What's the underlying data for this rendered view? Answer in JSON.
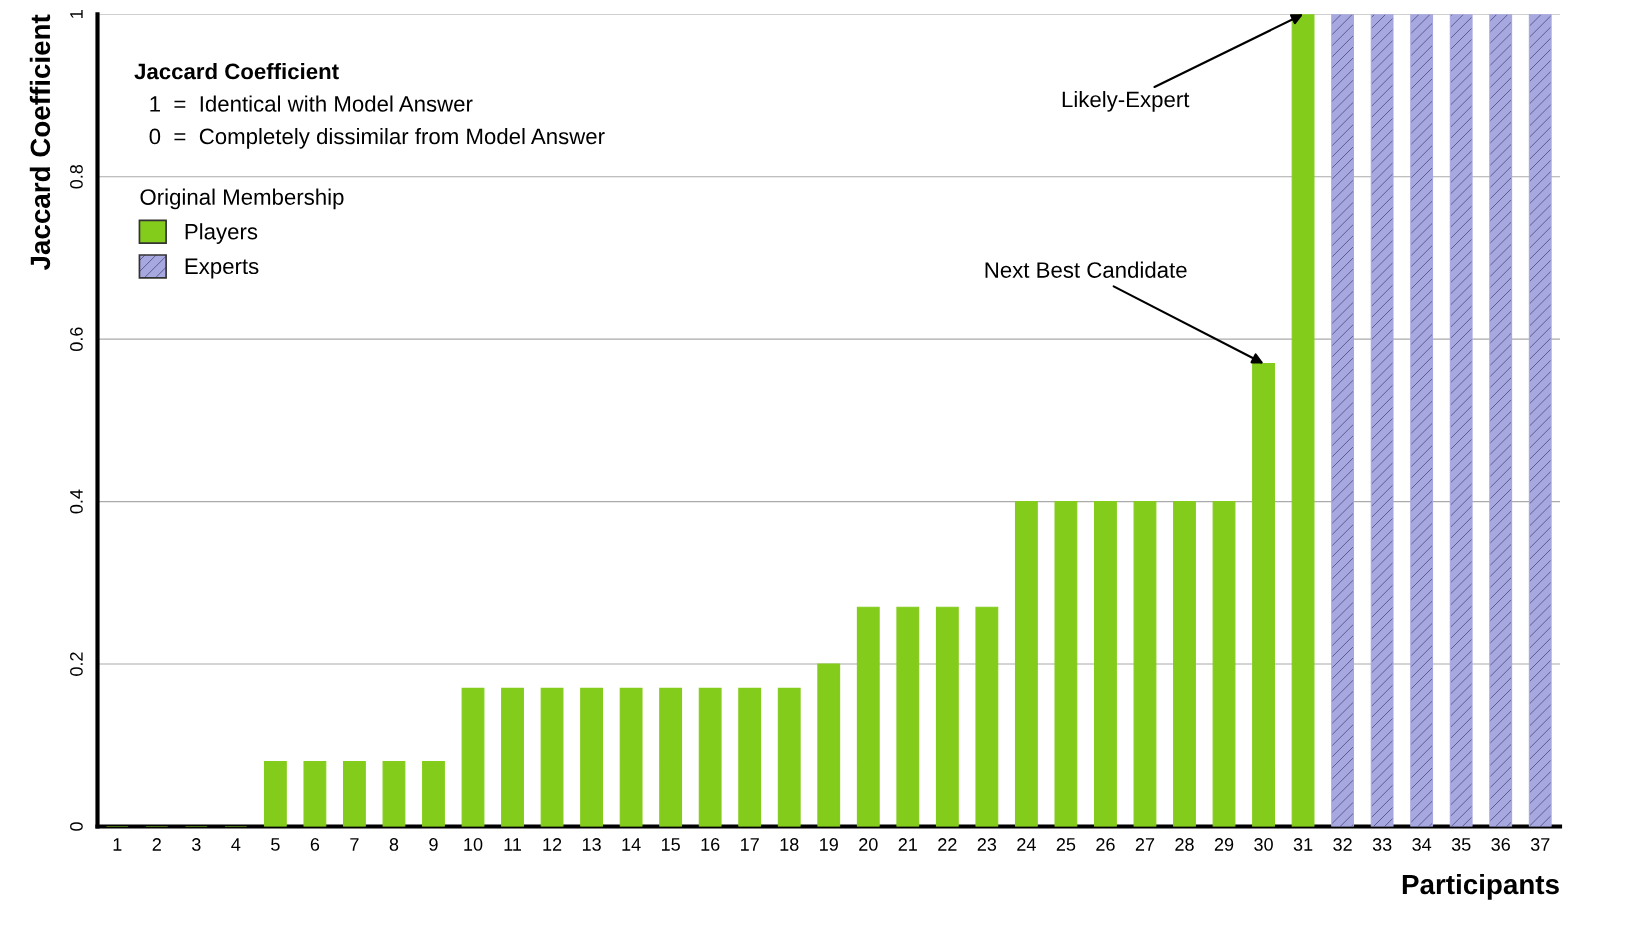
{
  "chart_data": {
    "type": "bar",
    "xlabel": "Participants",
    "ylabel": "Jaccard Coefficient",
    "legend_title": "Original Membership",
    "categories": [
      "1",
      "2",
      "3",
      "4",
      "5",
      "6",
      "7",
      "8",
      "9",
      "10",
      "11",
      "12",
      "13",
      "14",
      "15",
      "16",
      "17",
      "18",
      "19",
      "20",
      "21",
      "22",
      "23",
      "24",
      "25",
      "26",
      "27",
      "28",
      "29",
      "30",
      "31",
      "32",
      "33",
      "34",
      "35",
      "36",
      "37"
    ],
    "series": [
      {
        "name": "Players",
        "color": "#84cc1c",
        "values": [
          0,
          0,
          0,
          0,
          0.08,
          0.08,
          0.08,
          0.08,
          0.08,
          0.17,
          0.17,
          0.17,
          0.17,
          0.17,
          0.17,
          0.17,
          0.17,
          0.17,
          0.2,
          0.27,
          0.27,
          0.27,
          0.27,
          0.4,
          0.4,
          0.4,
          0.4,
          0.4,
          0.4,
          0.57,
          1,
          null,
          null,
          null,
          null,
          null,
          null
        ]
      },
      {
        "name": "Experts",
        "color": "#a8a8e0",
        "values": [
          null,
          null,
          null,
          null,
          null,
          null,
          null,
          null,
          null,
          null,
          null,
          null,
          null,
          null,
          null,
          null,
          null,
          null,
          null,
          null,
          null,
          null,
          null,
          null,
          null,
          null,
          null,
          null,
          null,
          null,
          null,
          1,
          1,
          1,
          1,
          1,
          1
        ]
      }
    ],
    "ylim": [
      0,
      1
    ],
    "yticks": [
      0,
      0.2,
      0.4,
      0.6,
      0.8,
      1
    ],
    "grid": "y",
    "legend": "top left",
    "annotations": [
      "Jaccard Coefficient",
      "1  =  Identical with Model Answer",
      "0  =  Completely dissimilar from Model Answer",
      {
        "text": "Likely-Expert",
        "x": "31",
        "y": 1
      },
      {
        "text": "Next Best Candidate",
        "x": "30",
        "y": 0.57
      }
    ]
  }
}
